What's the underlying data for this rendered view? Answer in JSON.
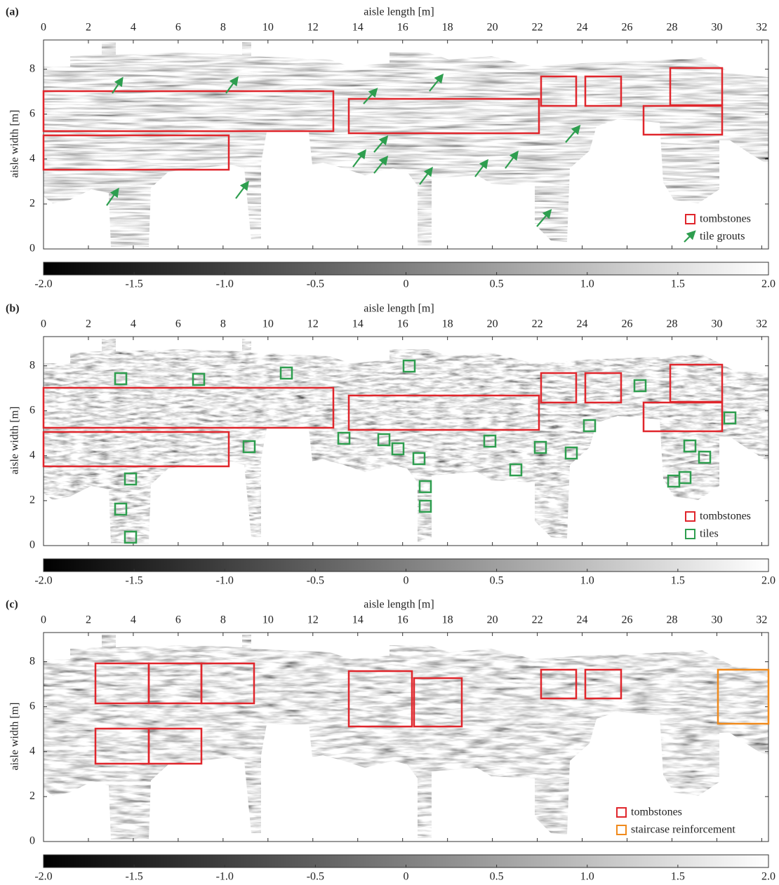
{
  "chart_data": [
    {
      "type": "heatmap",
      "panel": "(a)",
      "xlabel": "aisle length [m]",
      "ylabel": "aisle width [m]",
      "xlim": [
        0,
        32.3
      ],
      "xticks": [
        0,
        2,
        4,
        6,
        8,
        10,
        12,
        14,
        16,
        18,
        20,
        22,
        24,
        26,
        28,
        30,
        32
      ],
      "ylim": [
        0,
        9.3
      ],
      "yticks": [
        0,
        2,
        4,
        6,
        8
      ],
      "colorbar": {
        "lim": [
          -2,
          2
        ],
        "ticks": [
          {
            "value": -2,
            "label": "-2.0"
          },
          {
            "value": -1.5,
            "label": "-1.5"
          },
          {
            "value": -1,
            "label": "-1.0"
          },
          {
            "value": -0.5,
            "label": "-0.5"
          },
          0,
          0.5,
          {
            "value": 1,
            "label": "1.0"
          },
          1.5,
          {
            "value": 2,
            "label": "2.0"
          }
        ]
      },
      "legend": [
        {
          "name": "tombstones",
          "color": "#e0262c",
          "shape": "box"
        },
        {
          "name": "tile grouts",
          "color": "#2e9e4f",
          "shape": "arrow"
        }
      ]
    },
    {
      "type": "heatmap",
      "panel": "(b)",
      "xlabel": "aisle length [m]",
      "ylabel": "aisle width [m]",
      "xlim": [
        0,
        32.3
      ],
      "xticks": [
        0,
        2,
        4,
        6,
        8,
        10,
        12,
        14,
        16,
        18,
        20,
        22,
        24,
        26,
        28,
        30,
        32
      ],
      "ylim": [
        0,
        9.3
      ],
      "yticks": [
        0,
        2,
        4,
        6,
        8
      ],
      "colorbar": {
        "lim": [
          -2,
          2
        ],
        "ticks": [
          {
            "value": -2,
            "label": "-2.0"
          },
          {
            "value": -1.5,
            "label": "-1.5"
          },
          {
            "value": -1,
            "label": "-1.0"
          },
          {
            "value": -0.5,
            "label": "-0.5"
          },
          0,
          0.5,
          {
            "value": 1,
            "label": "1.0"
          },
          1.5,
          {
            "value": 2,
            "label": "2.0"
          }
        ]
      },
      "legend": [
        {
          "name": "tombstones",
          "color": "#e0262c",
          "shape": "box"
        },
        {
          "name": "tiles",
          "color": "#2e9e4f",
          "shape": "box"
        }
      ]
    },
    {
      "type": "heatmap",
      "panel": "(c)",
      "xlabel": "aisle length [m]",
      "ylabel": "aisle width [m]",
      "xlim": [
        0,
        32.3
      ],
      "xticks": [
        0,
        2,
        4,
        6,
        8,
        10,
        12,
        14,
        16,
        18,
        20,
        22,
        24,
        26,
        28,
        30,
        32
      ],
      "ylim": [
        0,
        9.3
      ],
      "yticks": [
        0,
        2,
        4,
        6,
        8
      ],
      "colorbar": {
        "lim": [
          -2,
          2
        ],
        "ticks": [
          {
            "value": -2,
            "label": "-2.0"
          },
          {
            "value": -1.5,
            "label": "-1.5"
          },
          {
            "value": -1,
            "label": "-1.0"
          },
          {
            "value": -0.5,
            "label": "-0.5"
          },
          0,
          0.5,
          {
            "value": 1,
            "label": "1.0"
          },
          1.5,
          {
            "value": 2,
            "label": "2.0"
          }
        ]
      },
      "legend": [
        {
          "name": "tombstones",
          "color": "#e0262c",
          "shape": "box"
        },
        {
          "name": "staircase reinforcement",
          "color": "#f08a1c",
          "shape": "box"
        }
      ]
    }
  ]
}
